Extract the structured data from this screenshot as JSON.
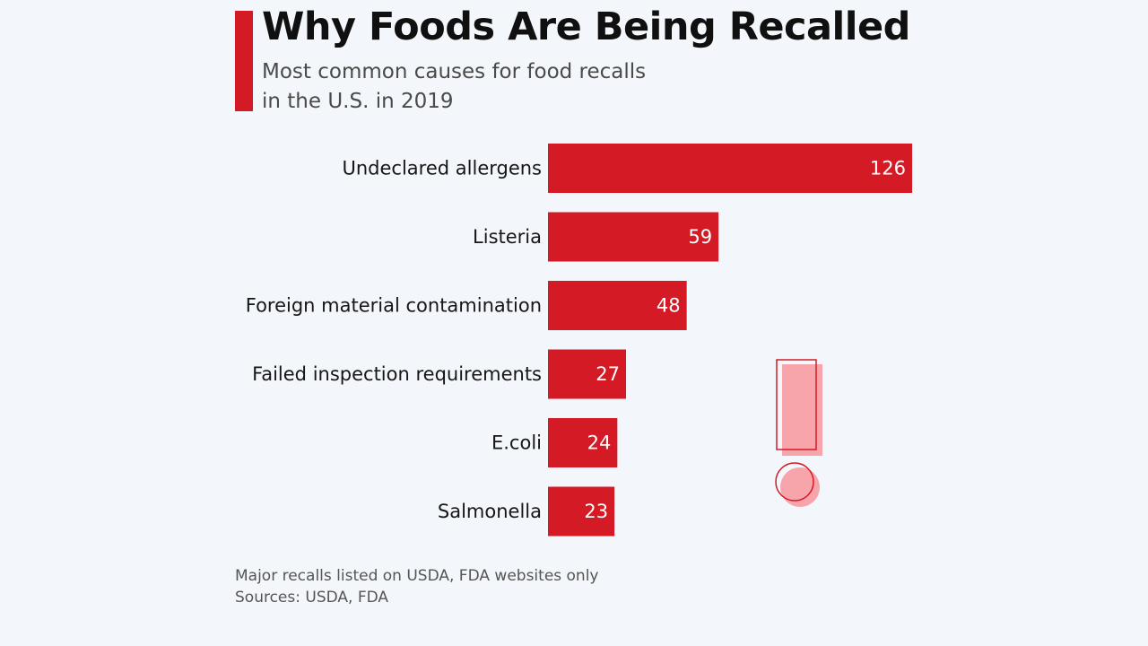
{
  "header": {
    "title": "Why Foods Are Being Recalled",
    "subtitle_line1": "Most common causes for food recalls",
    "subtitle_line2": "in the U.S. in 2019"
  },
  "footer": {
    "note": "Major recalls listed on USDA, FDA websites only",
    "sources": "Sources: USDA, FDA"
  },
  "colors": {
    "accent": "#d41a25",
    "bar": "#d41a25",
    "background": "#f3f6fa",
    "decoration_fill": "#f7a5ab"
  },
  "decoration_icon": "exclamation-mark-icon",
  "chart_data": {
    "type": "bar",
    "orientation": "horizontal",
    "title": "Why Foods Are Being Recalled",
    "subtitle": "Most common causes for food recalls in the U.S. in 2019",
    "categories": [
      "Undeclared allergens",
      "Listeria",
      "Foreign material contamination",
      "Failed inspection requirements",
      "E.coli",
      "Salmonella"
    ],
    "values": [
      126,
      59,
      48,
      27,
      24,
      23
    ],
    "xlim": [
      0,
      126
    ],
    "grid": false,
    "legend": "none"
  }
}
